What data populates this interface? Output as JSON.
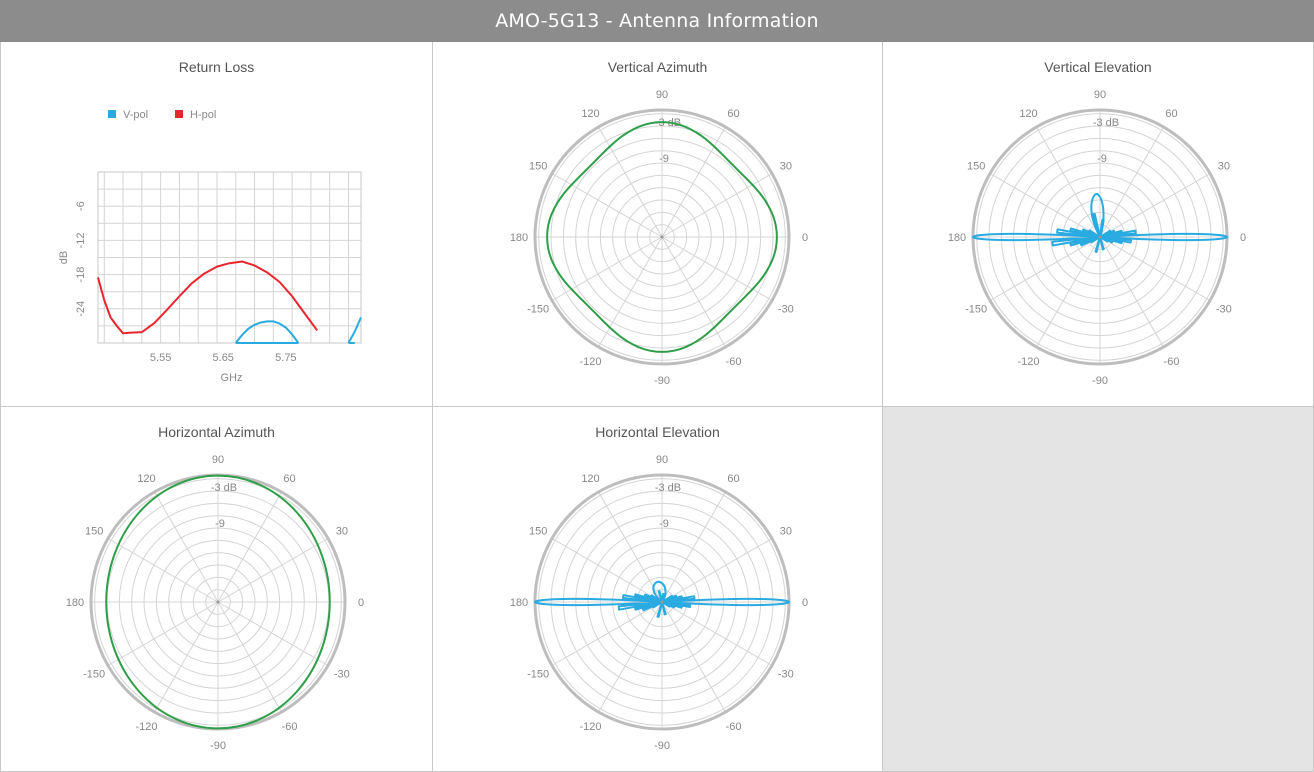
{
  "header": {
    "title": "AMO-5G13 - Antenna Information"
  },
  "colors": {
    "vpol": "#29abe2",
    "hpol": "#e8262d",
    "pattern_green": "#2e9e48",
    "grid": "#d4d4d4",
    "outer_ring": "#bdbdbd"
  },
  "chart_data": [
    {
      "id": "return_loss",
      "type": "line",
      "title": "Return Loss",
      "xlabel": "GHz",
      "ylabel": "dB",
      "xlim": [
        5.45,
        5.87
      ],
      "ylim": [
        -30,
        0
      ],
      "x_ticks": [
        "5.55",
        "5.65",
        "5.75"
      ],
      "x_tick_values": [
        5.55,
        5.65,
        5.75
      ],
      "y_ticks": [
        "-6",
        "-12",
        "-18",
        "-24"
      ],
      "y_tick_values": [
        -6,
        -12,
        -18,
        -24
      ],
      "legend": {
        "position": "top-left",
        "entries": [
          "V-pol",
          "H-pol"
        ]
      },
      "grid": true,
      "series": [
        {
          "name": "V-pol",
          "color": "#29abe2",
          "x": [
            5.67,
            5.68,
            5.69,
            5.7,
            5.71,
            5.72,
            5.73,
            5.74,
            5.75,
            5.76,
            5.77,
            5.85,
            5.86,
            5.87
          ],
          "y": [
            -30,
            -28.6,
            -27.5,
            -26.8,
            -26.4,
            -26.2,
            -26.2,
            -26.6,
            -27.3,
            -28.5,
            -30,
            -30,
            -28,
            -25.5
          ]
        },
        {
          "name": "H-pol",
          "color": "#e8262d",
          "x": [
            5.45,
            5.46,
            5.47,
            5.48,
            5.49,
            5.5,
            5.52,
            5.54,
            5.56,
            5.58,
            5.6,
            5.62,
            5.64,
            5.66,
            5.68,
            5.7,
            5.72,
            5.74,
            5.76,
            5.78,
            5.8
          ],
          "y": [
            -18.5,
            -22.5,
            -25.5,
            -27,
            -28.3,
            -28.2,
            -28.1,
            -26.5,
            -24.2,
            -21.8,
            -19.5,
            -17.8,
            -16.6,
            -16,
            -15.7,
            -16.4,
            -17.6,
            -19.3,
            -21.8,
            -24.8,
            -27.8
          ]
        }
      ]
    },
    {
      "id": "vertical_azimuth",
      "type": "polar",
      "title": "Vertical Azimuth",
      "angle_labels": [
        "0",
        "30",
        "60",
        "90",
        "120",
        "150",
        "180",
        "-150",
        "-120",
        "-90",
        "-60",
        "-30"
      ],
      "angle_values": [
        0,
        30,
        60,
        90,
        120,
        150,
        180,
        -150,
        -120,
        -90,
        -60,
        -30
      ],
      "radial_labels": [
        "-3 dB",
        "-9"
      ],
      "color": "#2e9e48",
      "pattern": "quad_lobe",
      "pattern_params": {
        "r0": 0.85,
        "a": 0.055,
        "b": 0.03
      }
    },
    {
      "id": "vertical_elevation",
      "type": "polar",
      "title": "Vertical Elevation",
      "angle_labels": [
        "0",
        "30",
        "60",
        "90",
        "120",
        "150",
        "180",
        "-150",
        "-120",
        "-90",
        "-60",
        "-30"
      ],
      "angle_values": [
        0,
        30,
        60,
        90,
        120,
        150,
        180,
        -150,
        -120,
        -90,
        -60,
        -30
      ],
      "radial_labels": [
        "-3 dB",
        "-9"
      ],
      "color": "#29abe2",
      "pattern": "fan_beam",
      "pattern_params": {
        "main_width_deg": 3.2,
        "side_deg": [
          8,
          14,
          22,
          30
        ],
        "side_len": [
          0.33,
          0.22,
          0.14,
          0.1
        ],
        "up_lobe_len": 0.34
      }
    },
    {
      "id": "horizontal_azimuth",
      "type": "polar",
      "title": "Horizontal Azimuth",
      "angle_labels": [
        "0",
        "30",
        "60",
        "90",
        "120",
        "150",
        "180",
        "-150",
        "-120",
        "-90",
        "-60",
        "-30"
      ],
      "angle_values": [
        0,
        30,
        60,
        90,
        120,
        150,
        180,
        -150,
        -120,
        -90,
        -60,
        -30
      ],
      "radial_labels": [
        "-3 dB",
        "-9"
      ],
      "color": "#2e9e48",
      "pattern": "ellipse",
      "pattern_params": {
        "rx": 0.88,
        "ry": 0.995
      }
    },
    {
      "id": "horizontal_elevation",
      "type": "polar",
      "title": "Horizontal Elevation",
      "angle_labels": [
        "0",
        "30",
        "60",
        "90",
        "120",
        "150",
        "180",
        "-150",
        "-120",
        "-90",
        "-60",
        "-30"
      ],
      "angle_values": [
        0,
        30,
        60,
        90,
        120,
        150,
        180,
        -150,
        -120,
        -90,
        -60,
        -30
      ],
      "radial_labels": [
        "-3 dB",
        "-9"
      ],
      "color": "#29abe2",
      "pattern": "fan_beam",
      "pattern_params": {
        "main_width_deg": 3.2,
        "side_deg": [
          8,
          14,
          22,
          30
        ],
        "side_len": [
          0.3,
          0.2,
          0.14,
          0.1
        ],
        "up_lobe_len": 0.16
      }
    }
  ]
}
